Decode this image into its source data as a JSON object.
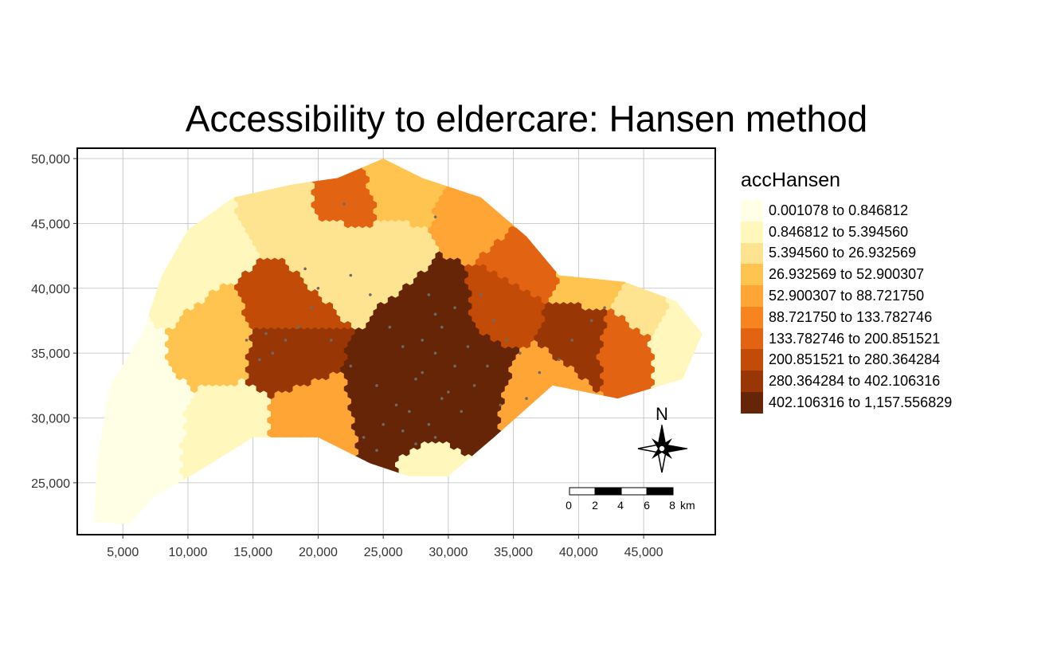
{
  "title": "Accessibility to eldercare: Hansen method",
  "map": {
    "x_axis": {
      "range": [
        1500,
        50500
      ],
      "ticks": [
        5000,
        10000,
        15000,
        20000,
        25000,
        30000,
        35000,
        40000,
        45000
      ],
      "tick_labels": [
        "5,000",
        "10,000",
        "15,000",
        "20,000",
        "25,000",
        "30,000",
        "35,000",
        "40,000",
        "45,000"
      ]
    },
    "y_axis": {
      "range": [
        21000,
        50800
      ],
      "ticks": [
        25000,
        30000,
        35000,
        40000,
        45000,
        50000
      ],
      "tick_labels": [
        "25,000",
        "30,000",
        "35,000",
        "40,000",
        "45,000",
        "50,000"
      ]
    },
    "grid": true,
    "north_arrow": {
      "label": "N",
      "position": "bottom-right"
    },
    "scale_bar": {
      "labels": [
        "0",
        "2",
        "4",
        "6",
        "8"
      ],
      "unit": "km",
      "position": "bottom-right"
    },
    "region_extent_polygon": [
      [
        2800,
        22000
      ],
      [
        3000,
        26500
      ],
      [
        4000,
        32500
      ],
      [
        6500,
        36500
      ],
      [
        8000,
        41000
      ],
      [
        10000,
        44500
      ],
      [
        13500,
        47000
      ],
      [
        18000,
        48000
      ],
      [
        21500,
        48500
      ],
      [
        25000,
        50000
      ],
      [
        28000,
        48500
      ],
      [
        32500,
        47000
      ],
      [
        36000,
        44000
      ],
      [
        38500,
        41000
      ],
      [
        43500,
        40500
      ],
      [
        47500,
        39000
      ],
      [
        49500,
        36500
      ],
      [
        48000,
        33000
      ],
      [
        43000,
        31500
      ],
      [
        38000,
        32500
      ],
      [
        33500,
        28500
      ],
      [
        30000,
        25500
      ],
      [
        27000,
        25500
      ],
      [
        24000,
        26500
      ],
      [
        20000,
        28500
      ],
      [
        15000,
        28500
      ],
      [
        11000,
        26000
      ],
      [
        7500,
        24000
      ],
      [
        5500,
        21800
      ]
    ]
  },
  "legend": {
    "title": "accHansen",
    "position": "right",
    "classes": [
      {
        "label": "0.001078 to 0.846812",
        "color": "#FFFFE5"
      },
      {
        "label": "0.846812 to 5.394560",
        "color": "#FFF7BC"
      },
      {
        "label": "5.394560 to 26.932569",
        "color": "#FEE391"
      },
      {
        "label": "26.932569 to 52.900307",
        "color": "#FEC44F"
      },
      {
        "label": "52.900307 to 88.721750",
        "color": "#FEA536"
      },
      {
        "label": "88.721750 to 133.782746",
        "color": "#F7841E"
      },
      {
        "label": "133.782746 to 200.851521",
        "color": "#E26412"
      },
      {
        "label": "200.851521 to 280.364284",
        "color": "#C14B07"
      },
      {
        "label": "280.364284 to 402.106316",
        "color": "#983605"
      },
      {
        "label": "402.106316 to 1,157.556829",
        "color": "#662506"
      }
    ]
  },
  "class_centers": [
    {
      "x": 3500,
      "y": 25000,
      "class": 0,
      "r": 3500
    },
    {
      "x": 6000,
      "y": 30000,
      "class": 0,
      "r": 3500
    },
    {
      "x": 5000,
      "y": 35500,
      "class": 0,
      "r": 2800
    },
    {
      "x": 8000,
      "y": 41000,
      "class": 1,
      "r": 3500
    },
    {
      "x": 11000,
      "y": 45000,
      "class": 1,
      "r": 3500
    },
    {
      "x": 13000,
      "y": 29000,
      "class": 1,
      "r": 3000
    },
    {
      "x": 48000,
      "y": 37000,
      "class": 1,
      "r": 2500
    },
    {
      "x": 16000,
      "y": 46500,
      "class": 2,
      "r": 2800
    },
    {
      "x": 21000,
      "y": 42500,
      "class": 2,
      "r": 2500
    },
    {
      "x": 25500,
      "y": 42500,
      "class": 2,
      "r": 2000
    },
    {
      "x": 45000,
      "y": 38500,
      "class": 2,
      "r": 2200
    },
    {
      "x": 28500,
      "y": 26500,
      "class": 1,
      "r": 1500
    },
    {
      "x": 12000,
      "y": 36000,
      "class": 3,
      "r": 3000
    },
    {
      "x": 26500,
      "y": 48500,
      "class": 3,
      "r": 2500
    },
    {
      "x": 41000,
      "y": 40500,
      "class": 3,
      "r": 2500
    },
    {
      "x": 32500,
      "y": 46000,
      "class": 4,
      "r": 2500
    },
    {
      "x": 19000,
      "y": 29500,
      "class": 4,
      "r": 2500
    },
    {
      "x": 37000,
      "y": 32000,
      "class": 4,
      "r": 2500
    },
    {
      "x": 22000,
      "y": 47000,
      "class": 6,
      "r": 2000
    },
    {
      "x": 36000,
      "y": 42000,
      "class": 6,
      "r": 2500
    },
    {
      "x": 43000,
      "y": 36000,
      "class": 6,
      "r": 2200
    },
    {
      "x": 17000,
      "y": 38500,
      "class": 7,
      "r": 2500
    },
    {
      "x": 34000,
      "y": 38500,
      "class": 7,
      "r": 2500
    },
    {
      "x": 40500,
      "y": 36500,
      "class": 8,
      "r": 2500
    },
    {
      "x": 17000,
      "y": 35000,
      "class": 8,
      "r": 2500
    },
    {
      "x": 29500,
      "y": 38000,
      "class": 9,
      "r": 2500
    },
    {
      "x": 27000,
      "y": 31000,
      "class": 9,
      "r": 3000
    },
    {
      "x": 31500,
      "y": 33500,
      "class": 9,
      "r": 3000
    }
  ],
  "facility_points": [
    [
      28500,
      39500
    ],
    [
      29000,
      38000
    ],
    [
      29500,
      37000
    ],
    [
      30500,
      38500
    ],
    [
      28000,
      36000
    ],
    [
      29000,
      35000
    ],
    [
      30500,
      34000
    ],
    [
      31500,
      35500
    ],
    [
      27500,
      33000
    ],
    [
      26000,
      31000
    ],
    [
      27000,
      30500
    ],
    [
      28500,
      29500
    ],
    [
      26500,
      29000
    ],
    [
      27500,
      28000
    ],
    [
      29000,
      28500
    ],
    [
      30000,
      32000
    ],
    [
      32000,
      32500
    ],
    [
      33000,
      34000
    ],
    [
      34500,
      36000
    ],
    [
      33500,
      37500
    ],
    [
      32500,
      39500
    ],
    [
      24500,
      32500
    ],
    [
      22500,
      34000
    ],
    [
      21000,
      36000
    ],
    [
      19500,
      38500
    ],
    [
      18500,
      37000
    ],
    [
      17500,
      36000
    ],
    [
      16500,
      35000
    ],
    [
      15500,
      34500
    ],
    [
      16000,
      36500
    ],
    [
      14500,
      36000
    ],
    [
      20000,
      40000
    ],
    [
      19000,
      41500
    ],
    [
      22500,
      41000
    ],
    [
      24000,
      39500
    ],
    [
      25500,
      37000
    ],
    [
      26500,
      35500
    ],
    [
      35500,
      35000
    ],
    [
      37000,
      33500
    ],
    [
      38500,
      34500
    ],
    [
      39500,
      36000
    ],
    [
      41000,
      37500
    ],
    [
      42000,
      38500
    ],
    [
      36000,
      31500
    ],
    [
      34000,
      31000
    ],
    [
      31000,
      30500
    ],
    [
      29500,
      31500
    ],
    [
      28000,
      33500
    ],
    [
      22000,
      46500
    ],
    [
      29000,
      45500
    ],
    [
      24500,
      27500
    ],
    [
      23500,
      28500
    ],
    [
      25000,
      29500
    ]
  ]
}
